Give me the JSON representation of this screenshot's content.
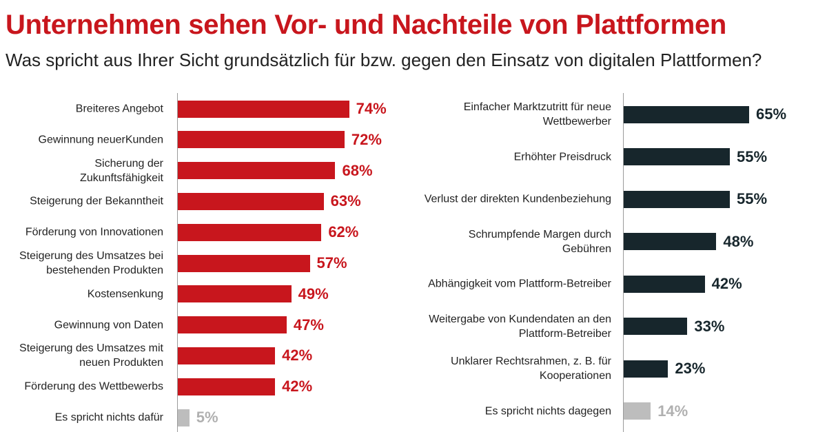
{
  "header": {
    "title": "Unternehmen sehen Vor- und Nachteile von Plattformen",
    "subtitle": "Was spricht aus Ihrer Sicht grundsätzlich für bzw. gegen den Einsatz von digitalen Plattformen?"
  },
  "colors": {
    "pro_bar": "#c8161d",
    "con_bar": "#17262c",
    "neutral_bar": "#bdbdbd",
    "neutral_text": "#b0b0b0"
  },
  "chart_data": [
    {
      "type": "bar",
      "orientation": "horizontal",
      "name": "Vorteile",
      "unit": "%",
      "xlim": [
        0,
        100
      ],
      "categories": [
        [
          "Breiteres Angebot"
        ],
        [
          "Gewinnung neuerKunden"
        ],
        [
          "Sicherung der",
          "Zukunftsfähigkeit"
        ],
        [
          "Steigerung der Bekanntheit"
        ],
        [
          "Förderung von Innovationen"
        ],
        [
          "Steigerung des Umsatzes bei",
          "bestehenden Produkten"
        ],
        [
          "Kostensenkung"
        ],
        [
          "Gewinnung von Daten"
        ],
        [
          "Steigerung des Umsatzes mit",
          "neuen Produkten"
        ],
        [
          "Förderung des Wettbewerbs"
        ],
        [
          "Es spricht nichts dafür"
        ]
      ],
      "values": [
        74,
        72,
        68,
        63,
        62,
        57,
        49,
        47,
        42,
        42,
        5
      ],
      "value_labels": [
        "74%",
        "72%",
        "68%",
        "63%",
        "62%",
        "57%",
        "49%",
        "47%",
        "42%",
        "42%",
        "5%"
      ],
      "neutral_last": true
    },
    {
      "type": "bar",
      "orientation": "horizontal",
      "name": "Nachteile",
      "unit": "%",
      "xlim": [
        0,
        100
      ],
      "categories": [
        [
          "Einfacher Marktzutritt für neue",
          "Wettbewerber"
        ],
        [
          "Erhöhter Preisdruck"
        ],
        [
          "Verlust der direkten Kundenbeziehung"
        ],
        [
          "Schrumpfende Margen durch",
          "Gebühren"
        ],
        [
          "Abhängigkeit vom Plattform-Betreiber"
        ],
        [
          "Weitergabe von Kundendaten an den",
          "Plattform-Betreiber"
        ],
        [
          "Unklarer Rechtsrahmen, z. B. für",
          "Kooperationen"
        ],
        [
          "Es spricht nichts dagegen"
        ]
      ],
      "values": [
        65,
        55,
        55,
        48,
        42,
        33,
        23,
        14
      ],
      "value_labels": [
        "65%",
        "55%",
        "55%",
        "48%",
        "42%",
        "33%",
        "23%",
        "14%"
      ],
      "neutral_last": true
    }
  ]
}
